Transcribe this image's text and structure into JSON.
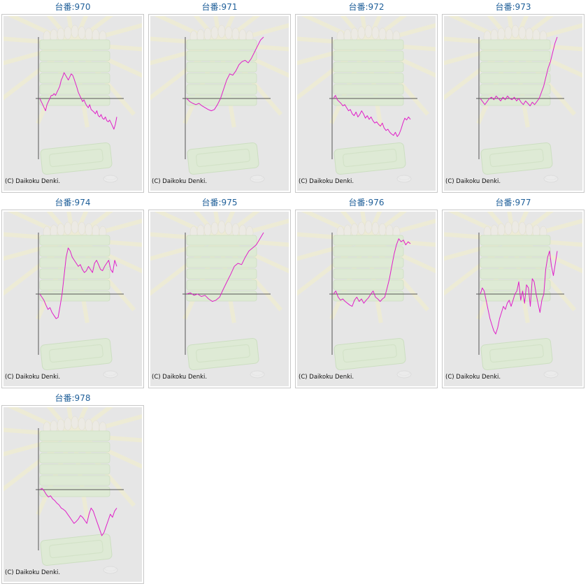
{
  "copyright": "(C) Daikoku Denki.",
  "colors": {
    "line": "#e020c8",
    "axis": "#555555",
    "background": "#e6e6e6",
    "caption": "#1f5f99"
  },
  "chart_data": [
    {
      "type": "line",
      "title": "台番:970",
      "values": [
        0,
        -5,
        -10,
        -15,
        -20,
        -10,
        -5,
        0,
        5,
        5,
        8,
        5,
        10,
        15,
        20,
        30,
        35,
        42,
        38,
        34,
        30,
        35,
        40,
        38,
        32,
        25,
        18,
        10,
        5,
        0,
        -5,
        -2,
        -8,
        -12,
        -15,
        -10,
        -18,
        -20,
        -22,
        -25,
        -20,
        -28,
        -30,
        -26,
        -32,
        -34,
        -30,
        -36,
        -38,
        -35,
        -40,
        -45,
        -50,
        -42,
        -30
      ]
    },
    {
      "type": "line",
      "title": "台番:971",
      "values": [
        0,
        -5,
        -8,
        -10,
        -8,
        -12,
        -15,
        -18,
        -20,
        -18,
        -10,
        0,
        15,
        30,
        40,
        38,
        45,
        55,
        60,
        62,
        58,
        65,
        75,
        85,
        95,
        100
      ]
    },
    {
      "type": "line",
      "title": "台番:972",
      "values": [
        0,
        5,
        -2,
        -5,
        -8,
        -12,
        -10,
        -15,
        -20,
        -18,
        -25,
        -28,
        -22,
        -30,
        -26,
        -20,
        -25,
        -32,
        -28,
        -34,
        -30,
        -36,
        -40,
        -38,
        -42,
        -45,
        -40,
        -48,
        -52,
        -50,
        -55,
        -58,
        -60,
        -55,
        -62,
        -58,
        -50,
        -40,
        -32,
        -35,
        -30,
        -34
      ]
    },
    {
      "type": "line",
      "title": "台番:973",
      "values": [
        0,
        -5,
        -10,
        -5,
        0,
        2,
        -2,
        4,
        0,
        -4,
        2,
        -2,
        4,
        0,
        -2,
        2,
        -4,
        0,
        -6,
        -10,
        -4,
        -8,
        -12,
        -6,
        -10,
        -5,
        0,
        10,
        20,
        35,
        50,
        60,
        75,
        90,
        100
      ]
    },
    {
      "type": "line",
      "title": "台番:974",
      "values": [
        0,
        -5,
        -10,
        -18,
        -25,
        -22,
        -30,
        -35,
        -40,
        -38,
        -20,
        0,
        30,
        60,
        75,
        70,
        60,
        55,
        50,
        45,
        48,
        40,
        35,
        38,
        45,
        40,
        35,
        50,
        55,
        48,
        40,
        38,
        45,
        50,
        55,
        40,
        35,
        55,
        45
      ]
    },
    {
      "type": "line",
      "title": "台番:975",
      "values": [
        0,
        2,
        -2,
        0,
        -4,
        -2,
        -8,
        -12,
        -10,
        -5,
        8,
        20,
        32,
        45,
        50,
        48,
        60,
        70,
        75,
        80,
        90,
        100
      ]
    },
    {
      "type": "line",
      "title": "台番:976",
      "values": [
        0,
        5,
        -5,
        -10,
        -8,
        -12,
        -15,
        -18,
        -20,
        -10,
        -5,
        -12,
        -8,
        -15,
        -10,
        -6,
        0,
        5,
        -5,
        -8,
        -12,
        -8,
        -5,
        10,
        25,
        45,
        65,
        80,
        90,
        85,
        88,
        80,
        85,
        82
      ]
    },
    {
      "type": "line",
      "title": "台番:977",
      "values": [
        0,
        10,
        5,
        -10,
        -25,
        -40,
        -50,
        -60,
        -65,
        -55,
        -40,
        -30,
        -20,
        -25,
        -15,
        -10,
        -20,
        -10,
        0,
        5,
        20,
        -10,
        5,
        -15,
        15,
        10,
        -20,
        25,
        20,
        0,
        -15,
        -30,
        -10,
        0,
        40,
        60,
        70,
        45,
        30,
        50,
        70
      ]
    },
    {
      "type": "line",
      "title": "台番:978",
      "values": [
        0,
        2,
        -2,
        -8,
        -12,
        -10,
        -15,
        -18,
        -22,
        -25,
        -30,
        -32,
        -35,
        -40,
        -45,
        -50,
        -55,
        -52,
        -48,
        -42,
        -45,
        -50,
        -55,
        -40,
        -30,
        -35,
        -45,
        -55,
        -65,
        -75,
        -70,
        -60,
        -50,
        -40,
        -45,
        -35,
        -30
      ]
    }
  ]
}
